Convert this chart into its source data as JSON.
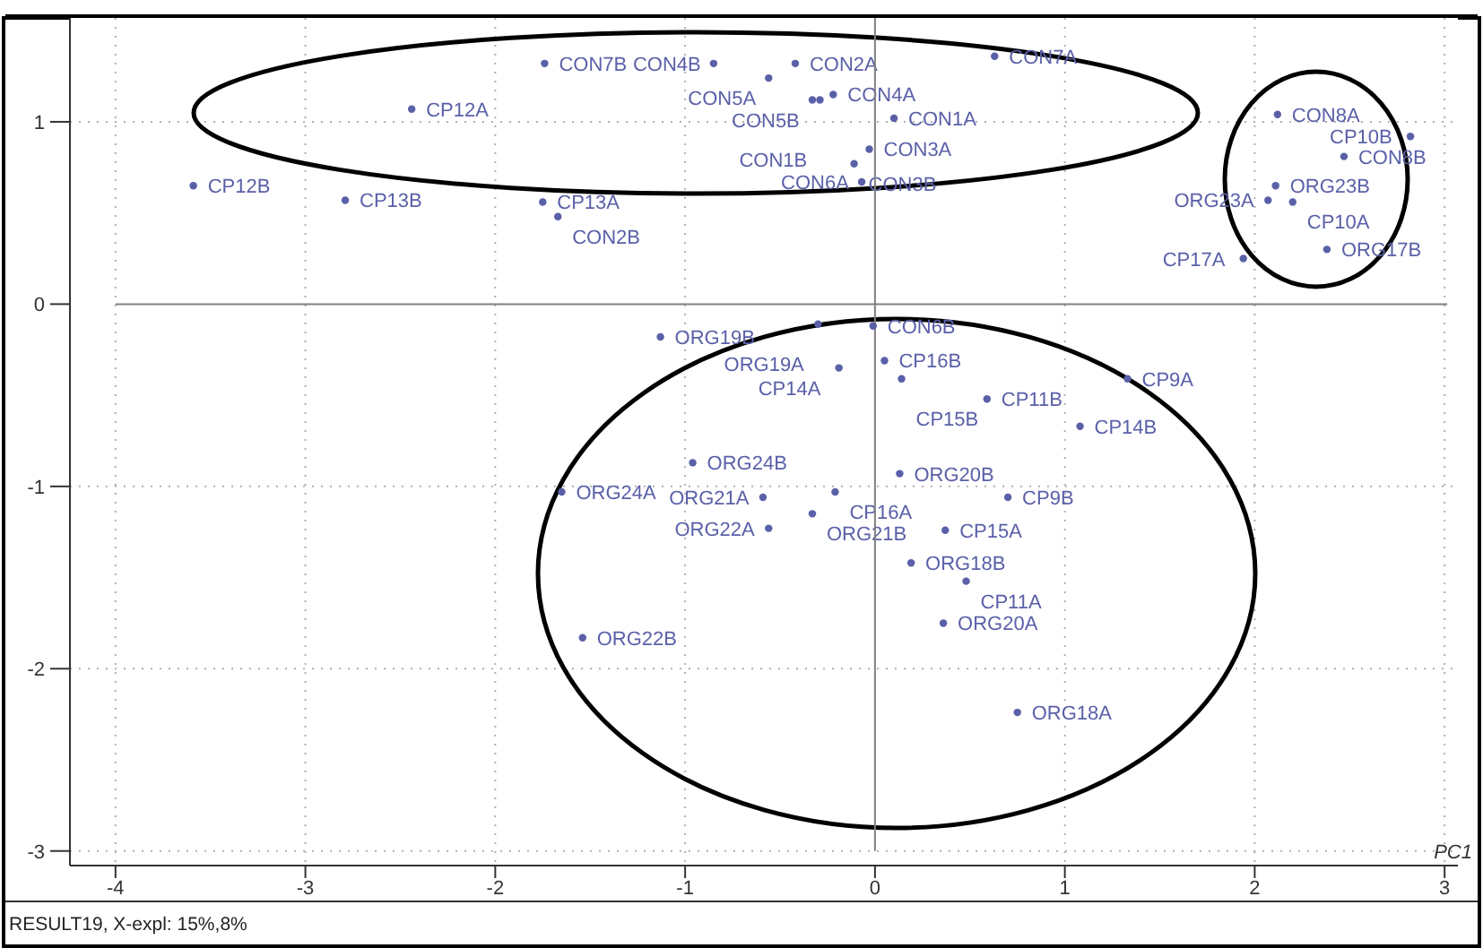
{
  "chart_data": {
    "type": "scatter",
    "xlabel": "PC1",
    "series": [
      {
        "color": "#5a60a8",
        "x": [
          -1.74,
          -0.85,
          -0.42,
          -0.56,
          -0.33,
          -0.29,
          -0.22,
          -2.44,
          -3.59,
          -2.79,
          -1.75,
          -1.67,
          0.1,
          -0.03,
          -0.11,
          -0.07,
          0.63,
          2.12,
          2.82,
          2.47,
          2.11,
          2.07,
          2.2,
          1.94,
          2.38,
          -1.13,
          -0.3,
          -0.01,
          -0.19,
          0.05,
          0.14,
          0.59,
          1.33,
          1.08,
          -0.96,
          -1.65,
          0.13,
          -0.59,
          -0.21,
          -0.33,
          -0.56,
          0.7,
          0.37,
          0.19,
          0.48,
          0.36,
          -1.54,
          0.75
        ],
        "values": [
          1.32,
          1.32,
          1.32,
          1.24,
          1.12,
          1.12,
          1.15,
          1.07,
          0.65,
          0.57,
          0.56,
          0.48,
          1.02,
          0.85,
          0.77,
          0.67,
          1.36,
          1.04,
          0.92,
          0.81,
          0.65,
          0.57,
          0.56,
          0.25,
          0.3,
          -0.18,
          -0.11,
          -0.12,
          -0.35,
          -0.31,
          -0.41,
          -0.52,
          -0.41,
          -0.67,
          -0.87,
          -1.03,
          -0.93,
          -1.06,
          -1.03,
          -1.15,
          -1.23,
          -1.06,
          -1.24,
          -1.42,
          -1.52,
          -1.75,
          -1.83,
          -2.24
        ]
      }
    ],
    "annotations": [
      {
        "text": "CON7B",
        "x": -1.74,
        "y": 1.32
      },
      {
        "text": "CON4B",
        "x": -0.85,
        "y": 1.32
      },
      {
        "text": "CON2A",
        "x": -0.42,
        "y": 1.32
      },
      {
        "text": "CON5A",
        "x": -0.56,
        "y": 1.24
      },
      {
        "text": "CON5B",
        "x": -0.33,
        "y": 1.12
      },
      {
        "text": "CON1B",
        "x": -0.29,
        "y": 1.12
      },
      {
        "text": "CON4A",
        "x": -0.22,
        "y": 1.15
      },
      {
        "text": "CP12A",
        "x": -2.44,
        "y": 1.07
      },
      {
        "text": "CP12B",
        "x": -3.59,
        "y": 0.65
      },
      {
        "text": "CP13B",
        "x": -2.79,
        "y": 0.57
      },
      {
        "text": "CP13A",
        "x": -1.75,
        "y": 0.56
      },
      {
        "text": "CON2B",
        "x": -1.67,
        "y": 0.48
      },
      {
        "text": "CON1A",
        "x": 0.1,
        "y": 1.02
      },
      {
        "text": "CON3A",
        "x": -0.03,
        "y": 0.85
      },
      {
        "text": "CON3B",
        "x": -0.11,
        "y": 0.77
      },
      {
        "text": "CON6A",
        "x": -0.07,
        "y": 0.67
      },
      {
        "text": "CON7A",
        "x": 0.63,
        "y": 1.36
      },
      {
        "text": "CON8A",
        "x": 2.12,
        "y": 1.04
      },
      {
        "text": "CP10B",
        "x": 2.82,
        "y": 0.92
      },
      {
        "text": "CON8B",
        "x": 2.47,
        "y": 0.81
      },
      {
        "text": "ORG23B",
        "x": 2.11,
        "y": 0.65
      },
      {
        "text": "ORG23A",
        "x": 2.07,
        "y": 0.57
      },
      {
        "text": "CP10A",
        "x": 2.2,
        "y": 0.56
      },
      {
        "text": "CP17A",
        "x": 1.94,
        "y": 0.25
      },
      {
        "text": "ORG17B",
        "x": 2.38,
        "y": 0.3
      },
      {
        "text": "ORG19B",
        "x": -1.13,
        "y": -0.18
      },
      {
        "text": "ORG19A",
        "x": -0.3,
        "y": -0.11
      },
      {
        "text": "CON6B",
        "x": -0.01,
        "y": -0.12
      },
      {
        "text": "CP14A",
        "x": -0.19,
        "y": -0.35
      },
      {
        "text": "CP16B",
        "x": 0.05,
        "y": -0.31
      },
      {
        "text": "CP15B",
        "x": 0.14,
        "y": -0.41
      },
      {
        "text": "CP11B",
        "x": 0.59,
        "y": -0.52
      },
      {
        "text": "CP9A",
        "x": 1.33,
        "y": -0.41
      },
      {
        "text": "CP14B",
        "x": 1.08,
        "y": -0.67
      },
      {
        "text": "ORG24B",
        "x": -0.96,
        "y": -0.87
      },
      {
        "text": "ORG24A",
        "x": -1.65,
        "y": -1.03
      },
      {
        "text": "ORG20B",
        "x": 0.13,
        "y": -0.93
      },
      {
        "text": "ORG21A",
        "x": -0.59,
        "y": -1.06
      },
      {
        "text": "CP16A",
        "x": -0.21,
        "y": -1.03
      },
      {
        "text": "ORG21B",
        "x": -0.33,
        "y": -1.15
      },
      {
        "text": "ORG22A",
        "x": -0.56,
        "y": -1.23
      },
      {
        "text": "CP9B",
        "x": 0.7,
        "y": -1.06
      },
      {
        "text": "CP15A",
        "x": 0.37,
        "y": -1.24
      },
      {
        "text": "ORG18B",
        "x": 0.19,
        "y": -1.42
      },
      {
        "text": "CP11A",
        "x": 0.48,
        "y": -1.52
      },
      {
        "text": "ORG20A",
        "x": 0.36,
        "y": -1.75
      },
      {
        "text": "ORG22B",
        "x": -1.54,
        "y": -1.83
      },
      {
        "text": "ORG18A",
        "x": 0.75,
        "y": -2.24
      },
      "RESULT19, X-expl: 15%,8%"
    ],
    "xlim": [
      -4.24,
      3.07
    ],
    "ylim": [
      -3.08,
      1.57
    ],
    "xticks": [
      -4,
      -3,
      -2,
      -1,
      0,
      1,
      2,
      3
    ],
    "yticks": [
      -3,
      -2,
      -1,
      0,
      1
    ],
    "grid": true,
    "marker": "circle"
  }
}
